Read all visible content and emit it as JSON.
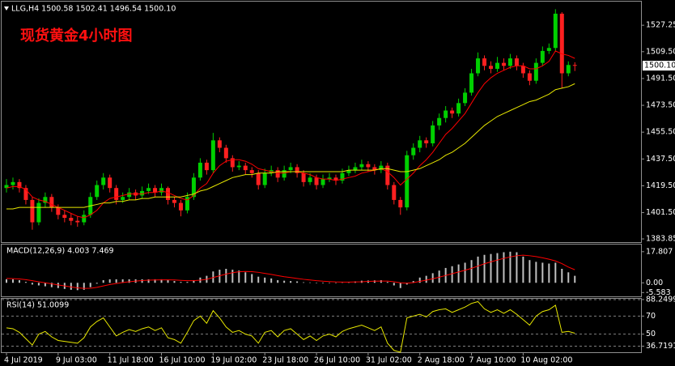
{
  "chart_data": [
    {
      "type": "candlestick",
      "header": "LLG,H4  1500.58 1502.41 1496.54 1500.10",
      "title": "现货黄金4小时图",
      "price_label": "1500.10",
      "up_color": "#00d000",
      "down_color": "#ff2020",
      "grid": false,
      "ylim": [
        1381.7,
        1543.1
      ],
      "yticks": [
        1527.25,
        {
          "value": 1509.5,
          "label": "1509.50"
        },
        {
          "value": 1491.5,
          "label": "1491.50"
        },
        {
          "value": 1473.5,
          "label": "1473.50"
        },
        {
          "value": 1455.5,
          "label": "1455.50"
        },
        {
          "value": 1437.5,
          "label": "1437.50"
        },
        {
          "value": 1419.5,
          "label": "1419.50"
        },
        {
          "value": 1401.5,
          "label": "1401.50"
        },
        1383.85
      ],
      "categories": [
        "4 Jul 2019",
        null,
        null,
        null,
        null,
        null,
        null,
        null,
        "9 Jul 03:00",
        null,
        null,
        null,
        null,
        null,
        null,
        null,
        "11 Jul 18:00",
        null,
        null,
        null,
        null,
        null,
        null,
        null,
        "16 Jul 10:00",
        null,
        null,
        null,
        null,
        null,
        null,
        null,
        "19 Jul 02:00",
        null,
        null,
        null,
        null,
        null,
        null,
        null,
        "23 Jul 18:00",
        null,
        null,
        null,
        null,
        null,
        null,
        null,
        "26 Jul 10:00",
        null,
        null,
        null,
        null,
        null,
        null,
        null,
        "31 Jul 02:00",
        null,
        null,
        null,
        null,
        null,
        null,
        null,
        "2 Aug 18:00",
        null,
        null,
        null,
        null,
        null,
        null,
        null,
        "7 Aug 10:00",
        null,
        null,
        null,
        null,
        null,
        null,
        null,
        "10 Aug 02:00",
        null,
        null,
        null,
        null,
        null,
        null,
        null,
        null
      ],
      "candles": [
        [
          1418,
          1424,
          1415,
          1420
        ],
        [
          1420,
          1425,
          1417,
          1422
        ],
        [
          1422,
          1424,
          1415,
          1418
        ],
        [
          1418,
          1420,
          1407,
          1410
        ],
        [
          1410,
          1412,
          1390,
          1395
        ],
        [
          1395,
          1411,
          1393,
          1408
        ],
        [
          1408,
          1415,
          1405,
          1412
        ],
        [
          1412,
          1414,
          1402,
          1405
        ],
        [
          1405,
          1407,
          1397,
          1400
        ],
        [
          1400,
          1403,
          1395,
          1398
        ],
        [
          1398,
          1401,
          1393,
          1396
        ],
        [
          1396,
          1399,
          1392,
          1395
        ],
        [
          1395,
          1403,
          1393,
          1400
        ],
        [
          1400,
          1415,
          1398,
          1412
        ],
        [
          1412,
          1423,
          1410,
          1420
        ],
        [
          1420,
          1428,
          1417,
          1425
        ],
        [
          1425,
          1427,
          1415,
          1418
        ],
        [
          1418,
          1420,
          1407,
          1410
        ],
        [
          1410,
          1415,
          1408,
          1412
        ],
        [
          1412,
          1418,
          1410,
          1415
        ],
        [
          1415,
          1417,
          1410,
          1413
        ],
        [
          1413,
          1419,
          1411,
          1416
        ],
        [
          1416,
          1421,
          1414,
          1418
        ],
        [
          1418,
          1420,
          1412,
          1415
        ],
        [
          1415,
          1421,
          1413,
          1418
        ],
        [
          1418,
          1419,
          1407,
          1410
        ],
        [
          1410,
          1412,
          1405,
          1408
        ],
        [
          1408,
          1410,
          1399,
          1403
        ],
        [
          1403,
          1415,
          1401,
          1412
        ],
        [
          1412,
          1428,
          1410,
          1425
        ],
        [
          1425,
          1438,
          1423,
          1435
        ],
        [
          1435,
          1437,
          1427,
          1430
        ],
        [
          1430,
          1455,
          1428,
          1450
        ],
        [
          1450,
          1452,
          1442,
          1445
        ],
        [
          1445,
          1447,
          1435,
          1438
        ],
        [
          1438,
          1440,
          1429,
          1432
        ],
        [
          1432,
          1436,
          1430,
          1433
        ],
        [
          1433,
          1435,
          1427,
          1430
        ],
        [
          1430,
          1432,
          1425,
          1428
        ],
        [
          1428,
          1430,
          1417,
          1420
        ],
        [
          1420,
          1431,
          1418,
          1428
        ],
        [
          1428,
          1433,
          1426,
          1430
        ],
        [
          1430,
          1432,
          1422,
          1425
        ],
        [
          1425,
          1433,
          1423,
          1430
        ],
        [
          1430,
          1435,
          1428,
          1432
        ],
        [
          1432,
          1434,
          1425,
          1428
        ],
        [
          1428,
          1430,
          1419,
          1422
        ],
        [
          1422,
          1428,
          1420,
          1425
        ],
        [
          1425,
          1427,
          1417,
          1420
        ],
        [
          1420,
          1427,
          1418,
          1424
        ],
        [
          1424,
          1428,
          1422,
          1425
        ],
        [
          1425,
          1427,
          1420,
          1423
        ],
        [
          1423,
          1431,
          1421,
          1428
        ],
        [
          1428,
          1433,
          1426,
          1430
        ],
        [
          1430,
          1435,
          1428,
          1432
        ],
        [
          1432,
          1437,
          1430,
          1434
        ],
        [
          1434,
          1436,
          1429,
          1432
        ],
        [
          1432,
          1434,
          1427,
          1430
        ],
        [
          1430,
          1436,
          1428,
          1433
        ],
        [
          1433,
          1435,
          1417,
          1420
        ],
        [
          1420,
          1422,
          1407,
          1410
        ],
        [
          1410,
          1412,
          1400,
          1405
        ],
        [
          1405,
          1443,
          1403,
          1440
        ],
        [
          1440,
          1448,
          1437,
          1445
        ],
        [
          1445,
          1453,
          1442,
          1450
        ],
        [
          1450,
          1452,
          1445,
          1448
        ],
        [
          1448,
          1463,
          1446,
          1460
        ],
        [
          1460,
          1468,
          1457,
          1465
        ],
        [
          1465,
          1473,
          1462,
          1470
        ],
        [
          1470,
          1472,
          1465,
          1468
        ],
        [
          1468,
          1478,
          1466,
          1475
        ],
        [
          1475,
          1485,
          1473,
          1482
        ],
        [
          1482,
          1498,
          1480,
          1495
        ],
        [
          1495,
          1509,
          1493,
          1505
        ],
        [
          1505,
          1507,
          1497,
          1500
        ],
        [
          1500,
          1503,
          1495,
          1498
        ],
        [
          1498,
          1506,
          1496,
          1502
        ],
        [
          1502,
          1505,
          1497,
          1500
        ],
        [
          1500,
          1508,
          1498,
          1505
        ],
        [
          1505,
          1507,
          1497,
          1500
        ],
        [
          1500,
          1502,
          1492,
          1495
        ],
        [
          1495,
          1497,
          1487,
          1490
        ],
        [
          1490,
          1505,
          1488,
          1502
        ],
        [
          1502,
          1513,
          1500,
          1510
        ],
        [
          1510,
          1515,
          1508,
          1512
        ],
        [
          1512,
          1538,
          1510,
          1535
        ],
        [
          1535,
          1536,
          1485,
          1495
        ],
        [
          1495,
          1503,
          1493,
          1500.58
        ],
        [
          1500.58,
          1502.41,
          1496.54,
          1500.1
        ]
      ],
      "ma": [
        {
          "color": "#ff0000",
          "values": [
            1418,
            1419,
            1419,
            1417,
            1412,
            1410,
            1409,
            1407,
            1405,
            1403,
            1401,
            1399,
            1398,
            1400,
            1403,
            1408,
            1411,
            1412,
            1413,
            1414,
            1414,
            1414,
            1415,
            1415,
            1416,
            1415,
            1413,
            1411,
            1410,
            1413,
            1418,
            1421,
            1428,
            1433,
            1436,
            1437,
            1437,
            1436,
            1434,
            1431,
            1430,
            1429,
            1428,
            1428,
            1429,
            1429,
            1428,
            1427,
            1425,
            1424,
            1424,
            1423,
            1424,
            1425,
            1426,
            1428,
            1429,
            1430,
            1431,
            1429,
            1425,
            1420,
            1424,
            1428,
            1433,
            1437,
            1442,
            1448,
            1454,
            1458,
            1463,
            1468,
            1475,
            1482,
            1488,
            1492,
            1495,
            1497,
            1499,
            1500,
            1500,
            1498,
            1498,
            1500,
            1503,
            1510,
            1508,
            1507,
            1505
          ]
        },
        {
          "color": "#e8e800",
          "values": [
            1404,
            1404,
            1405,
            1405,
            1405,
            1405,
            1405,
            1405,
            1405,
            1405,
            1405,
            1405,
            1405,
            1406,
            1407,
            1408,
            1408,
            1409,
            1409,
            1410,
            1410,
            1411,
            1411,
            1412,
            1412,
            1412,
            1412,
            1412,
            1413,
            1414,
            1416,
            1417,
            1419,
            1421,
            1423,
            1425,
            1426,
            1427,
            1427,
            1428,
            1428,
            1428,
            1429,
            1429,
            1429,
            1429,
            1429,
            1429,
            1429,
            1429,
            1429,
            1429,
            1429,
            1430,
            1430,
            1430,
            1430,
            1430,
            1431,
            1431,
            1430,
            1429,
            1429,
            1430,
            1431,
            1433,
            1435,
            1437,
            1440,
            1442,
            1445,
            1448,
            1452,
            1456,
            1460,
            1463,
            1466,
            1468,
            1470,
            1472,
            1474,
            1476,
            1477,
            1479,
            1481,
            1484,
            1485,
            1486,
            1488
          ]
        }
      ]
    },
    {
      "type": "macd",
      "header": "MACD(12,26,9) 4.003 7.469",
      "color": "#c0c0c0",
      "grid": false,
      "ylim": [
        -7.76,
        21.9
      ],
      "yticks": [
        17.807,
        {
          "value": 0,
          "label": "0.00"
        },
        -5.583
      ],
      "values": [
        2,
        2,
        1.5,
        0.5,
        -1,
        -1.5,
        -2,
        -2.5,
        -3,
        -3.5,
        -4,
        -4.2,
        -4,
        -2.5,
        -0.5,
        1.5,
        2,
        2,
        2,
        2,
        2,
        2,
        2,
        2,
        2,
        1.5,
        1,
        0.5,
        0.5,
        1.5,
        3,
        4,
        6.5,
        7.5,
        8,
        7.5,
        7,
        6,
        5,
        3.5,
        3,
        2.5,
        1.5,
        1.2,
        1,
        0.8,
        0.3,
        0.2,
        -0.2,
        -0.3,
        0,
        0,
        0.3,
        0.5,
        0.8,
        1.2,
        1.3,
        1.4,
        1.5,
        0.5,
        -1.5,
        -3,
        -1,
        1,
        3,
        4,
        5.5,
        7,
        8.5,
        9.5,
        10.5,
        11.5,
        13,
        15,
        16,
        16.5,
        17,
        17.5,
        17.8,
        17.5,
        15,
        13,
        12,
        11.5,
        11,
        11.5,
        8,
        6,
        4.003
      ],
      "signal": {
        "color": "#ff0000",
        "values": [
          2.5,
          2.4,
          2.2,
          1.8,
          1.2,
          0.6,
          0,
          -0.6,
          -1.2,
          -1.8,
          -2.4,
          -2.9,
          -3.2,
          -3.1,
          -2.6,
          -1.8,
          -1,
          -0.4,
          0.2,
          0.6,
          1,
          1.3,
          1.5,
          1.6,
          1.7,
          1.7,
          1.6,
          1.4,
          1.2,
          1.2,
          1.5,
          2,
          3,
          4,
          5,
          5.8,
          6.3,
          6.5,
          6.4,
          6,
          5.4,
          4.8,
          4.1,
          3.5,
          3,
          2.5,
          2,
          1.6,
          1.2,
          0.9,
          0.7,
          0.5,
          0.4,
          0.4,
          0.5,
          0.6,
          0.8,
          0.9,
          1,
          1,
          0.6,
          0,
          -0.2,
          0.1,
          0.8,
          1.5,
          2.3,
          3.2,
          4.2,
          5.2,
          6.2,
          7.2,
          8.3,
          9.6,
          10.9,
          12,
          13,
          14,
          14.8,
          15.5,
          15.8,
          15.5,
          15,
          14.3,
          13.5,
          12.5,
          11,
          9,
          7.469
        ]
      }
    },
    {
      "type": "line",
      "header": "RSI(14) 51.0099",
      "color": "#e8e800",
      "grid": true,
      "ylim": [
        30,
        89.1
      ],
      "yticks": [
        88.2499,
        70,
        50,
        36.7191
      ],
      "values": [
        57,
        56,
        52,
        45,
        38,
        50,
        53,
        47,
        43,
        42,
        41,
        40,
        46,
        58,
        64,
        68,
        58,
        48,
        52,
        55,
        53,
        56,
        58,
        54,
        57,
        46,
        44,
        40,
        52,
        65,
        70,
        62,
        76,
        68,
        58,
        52,
        54,
        50,
        48,
        40,
        52,
        54,
        47,
        54,
        56,
        50,
        44,
        48,
        43,
        48,
        50,
        47,
        53,
        56,
        58,
        60,
        57,
        54,
        58,
        40,
        32,
        30,
        68,
        70,
        72,
        69,
        75,
        77,
        78,
        74,
        77,
        80,
        84,
        86,
        78,
        74,
        77,
        73,
        77,
        72,
        66,
        60,
        70,
        75,
        77,
        82,
        52,
        53,
        51.0099
      ]
    }
  ]
}
